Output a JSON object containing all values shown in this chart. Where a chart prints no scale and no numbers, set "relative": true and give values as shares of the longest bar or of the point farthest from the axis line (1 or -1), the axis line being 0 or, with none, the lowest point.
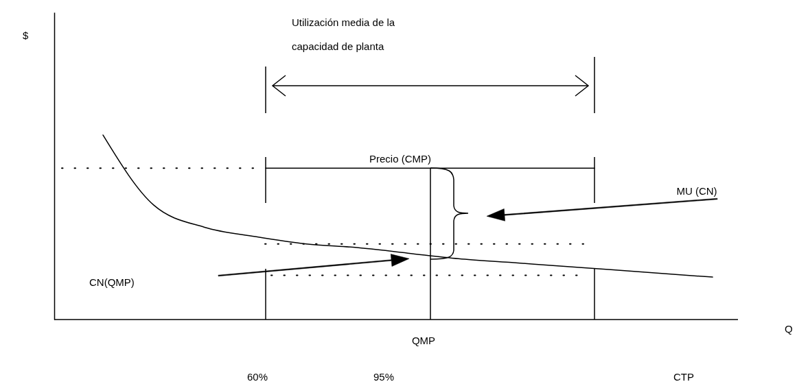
{
  "chart_data": {
    "type": "line",
    "relative": true,
    "categories": [
      null,
      null,
      null,
      null,
      null,
      null,
      null,
      null,
      null,
      null,
      null,
      null,
      null
    ],
    "series": [
      {
        "color": "#000000",
        "values": [
          1,
          0.62,
          0.5,
          0.45,
          0.41,
          0.39,
          0.36,
          0.33,
          0.31,
          0.29,
          0.27,
          0.25,
          0.23
        ]
      }
    ],
    "ref_lines": [
      {
        "axis": "y",
        "value": 0.82,
        "label": "Precio (CMP)",
        "color": "#000000",
        "line_style": "solid"
      },
      {
        "axis": "y",
        "value": 0.82,
        "color": "#000000",
        "line_style": "dotted"
      },
      {
        "axis": "y",
        "value": 0.41,
        "color": "#000000",
        "line_style": "dotted"
      },
      {
        "axis": "y",
        "value": 0.24,
        "color": "#000000",
        "line_style": "dotted"
      }
    ],
    "annotations": [
      "$",
      "Utilización media de la",
      "capacidad de planta",
      "MU (CN)",
      "CN(QMP)",
      "QMP",
      "Q",
      "60%",
      "95%",
      "CTP"
    ],
    "grid": false,
    "marker": "none"
  }
}
